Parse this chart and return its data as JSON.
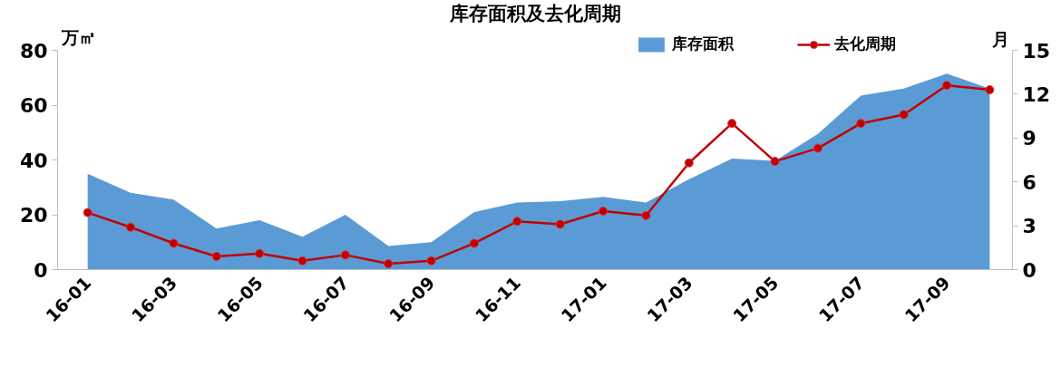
{
  "chart_data": {
    "type": "area",
    "title": "库存面积及去化周期",
    "ylabel": "万㎡",
    "y2label": "月",
    "categories": [
      "16-01",
      null,
      "16-03",
      null,
      "16-05",
      null,
      "16-07",
      null,
      "16-09",
      null,
      "16-11",
      null,
      "17-01",
      null,
      "17-03",
      null,
      "17-05",
      null,
      "17-07",
      null,
      "17-09",
      null
    ],
    "series": [
      {
        "name": "库存面积",
        "color": "#5b9bd5",
        "values": [
          35,
          28,
          25.5,
          15,
          18,
          12,
          20,
          8.6,
          10,
          21,
          24.5,
          25,
          26.5,
          24.5,
          33,
          40.5,
          39.7,
          49.5,
          63.5,
          66,
          71.5,
          66
        ]
      },
      {
        "name": "去化周期",
        "type": "line",
        "axis": "y2",
        "color": "#c00000",
        "marker": "circle",
        "line_style": "solid",
        "values": [
          3.9,
          2.9,
          1.8,
          0.9,
          1.1,
          0.6,
          1.0,
          0.4,
          0.6,
          1.8,
          3.3,
          3.1,
          4.0,
          3.7,
          7.3,
          10.0,
          7.4,
          8.3,
          10.0,
          10.6,
          12.6,
          12.3
        ]
      }
    ],
    "ylim": [
      0,
      80
    ],
    "yticks": [
      0,
      20,
      40,
      60,
      80
    ],
    "y2lim": [
      0,
      15
    ],
    "y2ticks": [
      0,
      3,
      6,
      9,
      12,
      15
    ],
    "grid": false,
    "legend": "top right"
  }
}
